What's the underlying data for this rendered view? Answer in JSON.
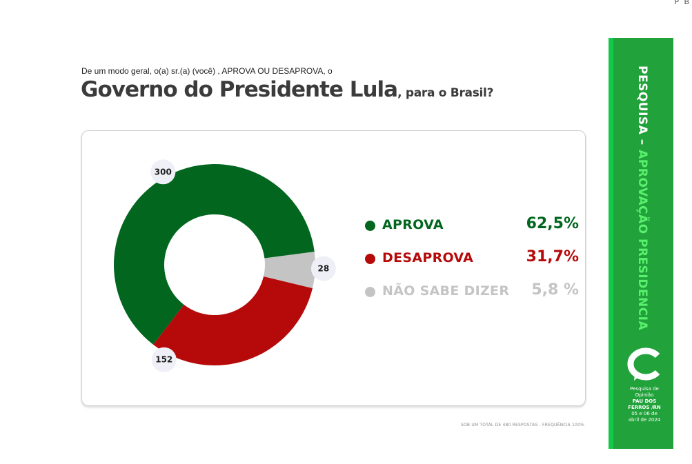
{
  "corner_text": "P B",
  "question_line": "De um modo geral, o(a) sr.(a) (você) , APROVA OU DESAPROVA, o",
  "headline_big": "Governo do Presidente Lula",
  "headline_small": ", para o Brasil?",
  "colors": {
    "aprova": "#02661f",
    "desaprova": "#b60a0a",
    "nao_sabe": "#c4c4c4",
    "band": "#22a23a",
    "band_accent": "#59f06e"
  },
  "chart_data": {
    "type": "pie",
    "variant": "donut",
    "categories": [
      "APROVA",
      "DESAPROVA",
      "NÃO SABE DIZER"
    ],
    "counts": [
      300,
      152,
      28
    ],
    "percent_labels": [
      "62,5%",
      "31,7%",
      "5,8 %"
    ],
    "count_labels": [
      "300",
      "152",
      "28"
    ],
    "legend_position": "right"
  },
  "footnote": "SOB UM TOTAL DE 480 RESPOSTAS - FREQUÊNCIA 100%",
  "side_panel": {
    "title_part1": "PESQUISA – ",
    "title_part2": "APROVAÇÃO PRESIDENCIA",
    "logo_icon": "consult-c-logo-icon",
    "caption_line1": "Pesquisa de",
    "caption_line2": "Opinião",
    "caption_line3": "PAU DOS",
    "caption_line4": "FERROS /RN",
    "caption_line5": "05 e 06 de",
    "caption_line6": "abril de 2024"
  }
}
